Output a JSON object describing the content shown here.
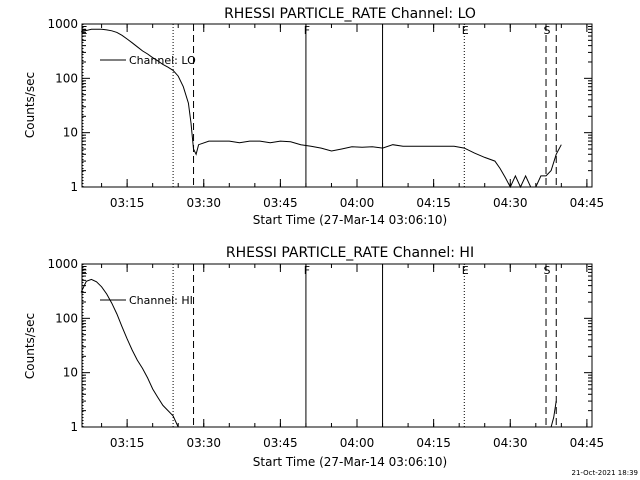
{
  "chart_data": [
    {
      "type": "line",
      "title": "RHESSI PARTICLE_RATE Channel: LO",
      "xlabel": "Start Time (27-Mar-14 03:06:10)",
      "ylabel": "Counts/sec",
      "yscale": "log",
      "ylim": [
        1,
        1000
      ],
      "y_ticks": [
        "1",
        "10",
        "100",
        "1000"
      ],
      "x_ticks": [
        "03:15",
        "03:30",
        "03:45",
        "04:00",
        "04:15",
        "04:30",
        "04:45"
      ],
      "legend": {
        "position": "top-left",
        "entries": [
          "Channel: LO"
        ]
      },
      "markers": [
        {
          "label": "E",
          "time": "03:06",
          "style": "dotted"
        },
        {
          "label": "",
          "time": "03:24",
          "style": "dotted"
        },
        {
          "label": "",
          "time": "03:28",
          "style": "dashed"
        },
        {
          "label": "F",
          "time": "03:50",
          "style": "solid"
        },
        {
          "label": "",
          "time": "04:05",
          "style": "solid"
        },
        {
          "label": "E",
          "time": "04:21",
          "style": "dotted"
        },
        {
          "label": "S",
          "time": "04:37",
          "style": "dashed"
        },
        {
          "label": "",
          "time": "04:39",
          "style": "dashed"
        }
      ],
      "series": [
        {
          "name": "Channel: LO",
          "x": [
            "03:06",
            "03:08",
            "03:09",
            "03:10",
            "03:11",
            "03:12",
            "03:13",
            "03:14",
            "03:15",
            "03:16",
            "03:17",
            "03:18",
            "03:19",
            "03:20",
            "03:21",
            "03:22",
            "03:23",
            "03:24",
            "03:25",
            "03:26",
            "03:27",
            "03:27:30",
            "03:28",
            "03:28:30",
            "03:29",
            "03:31",
            "03:33",
            "03:35",
            "03:37",
            "03:39",
            "03:41",
            "03:43",
            "03:45",
            "03:47",
            "03:49",
            "03:51",
            "03:53",
            "03:55",
            "03:57",
            "03:59",
            "04:01",
            "04:03",
            "04:05",
            "04:07",
            "04:09",
            "04:11",
            "04:13",
            "04:15",
            "04:17",
            "04:19",
            "04:21",
            "04:23",
            "04:25",
            "04:27",
            "04:28",
            "04:29",
            "04:30",
            "04:31",
            "04:32",
            "04:33",
            "04:34",
            "04:35",
            "04:36",
            "04:37",
            "04:38",
            "04:39",
            "04:40"
          ],
          "y": [
            720,
            800,
            800,
            800,
            780,
            750,
            700,
            620,
            530,
            450,
            380,
            320,
            280,
            240,
            210,
            180,
            160,
            140,
            110,
            70,
            35,
            15,
            5,
            4,
            6,
            7,
            7,
            7,
            6.5,
            7,
            7,
            6.5,
            7,
            6.8,
            6,
            5.6,
            5.2,
            4.6,
            5,
            5.5,
            5.4,
            5.5,
            5.2,
            6,
            5.6,
            5.6,
            5.6,
            5.6,
            5.6,
            5.6,
            5.2,
            4.2,
            3.5,
            3,
            2.2,
            1.5,
            1,
            1.6,
            1,
            1.6,
            1,
            1,
            1.6,
            1.6,
            2,
            4,
            6
          ]
        }
      ]
    },
    {
      "type": "line",
      "title": "RHESSI PARTICLE_RATE Channel: HI",
      "xlabel": "Start Time (27-Mar-14 03:06:10)",
      "ylabel": "Counts/sec",
      "yscale": "log",
      "ylim": [
        1,
        1000
      ],
      "y_ticks": [
        "1",
        "10",
        "100",
        "1000"
      ],
      "x_ticks": [
        "03:15",
        "03:30",
        "03:45",
        "04:00",
        "04:15",
        "04:30",
        "04:45"
      ],
      "legend": {
        "position": "top-left",
        "entries": [
          "Channel: HI"
        ]
      },
      "markers": [
        {
          "label": "E",
          "time": "03:06",
          "style": "dotted"
        },
        {
          "label": "",
          "time": "03:24",
          "style": "dotted"
        },
        {
          "label": "",
          "time": "03:28",
          "style": "dashed"
        },
        {
          "label": "F",
          "time": "03:50",
          "style": "solid"
        },
        {
          "label": "",
          "time": "04:05",
          "style": "solid"
        },
        {
          "label": "E",
          "time": "04:21",
          "style": "dotted"
        },
        {
          "label": "S",
          "time": "04:37",
          "style": "dashed"
        },
        {
          "label": "",
          "time": "04:39",
          "style": "dashed"
        }
      ],
      "series": [
        {
          "name": "Channel: HI",
          "x": [
            "03:06",
            "03:07",
            "03:08",
            "03:09",
            "03:10",
            "03:11",
            "03:12",
            "03:13",
            "03:14",
            "03:15",
            "03:16",
            "03:17",
            "03:18",
            "03:19",
            "03:20",
            "03:21",
            "03:22",
            "03:23",
            "03:24",
            "03:25"
          ],
          "y": [
            300,
            480,
            520,
            470,
            380,
            280,
            190,
            120,
            70,
            42,
            26,
            17,
            12,
            8,
            5,
            3.5,
            2.5,
            2,
            1.6,
            1
          ]
        },
        {
          "name": "",
          "x": [
            "04:38",
            "04:38:30",
            "04:39"
          ],
          "y": [
            1,
            1.5,
            3
          ]
        }
      ]
    }
  ],
  "footer": {
    "timestamp": "21-Oct-2021 18:39"
  }
}
